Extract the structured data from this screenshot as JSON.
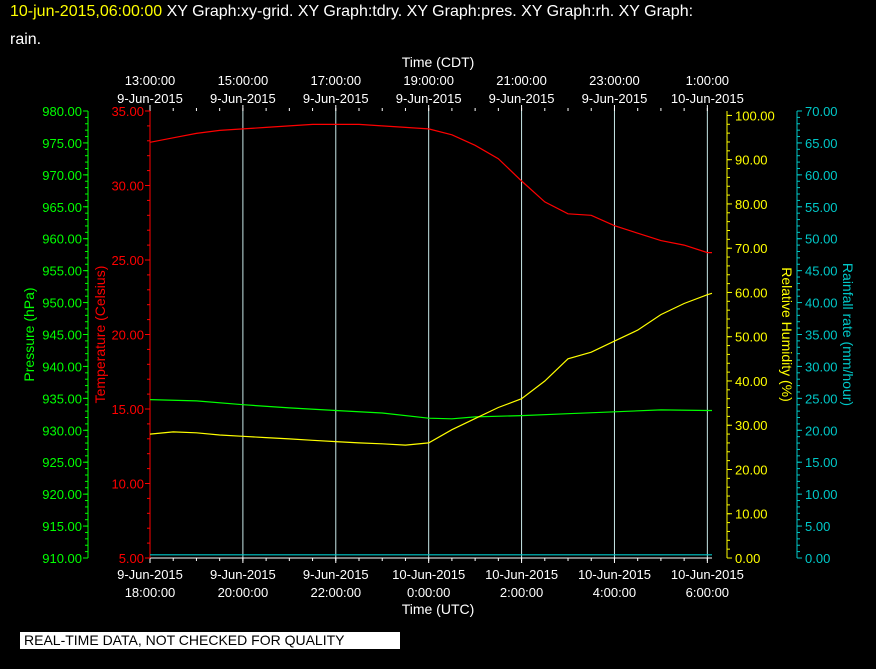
{
  "header": {
    "timestamp": "10-jun-2015,06:00:00",
    "title_rest": "  XY Graph:xy-grid.  XY Graph:tdry.  XY Graph:pres.  XY Graph:rh.  XY Graph:",
    "title_line2": "rain."
  },
  "footer": {
    "qc_notice": "REAL-TIME DATA, NOT CHECKED FOR QUALITY"
  },
  "colors": {
    "pressure": "#00ff00",
    "temperature": "#ff0000",
    "humidity": "#ffff00",
    "rainfall": "#00c8c8",
    "grid": "#c8e8e8",
    "axis_time": "#ffffff"
  },
  "chart_data": {
    "type": "line",
    "top_axis": {
      "label": "Time (CDT)",
      "ticks": [
        {
          "time": "13:00:00",
          "date": "9-Jun-2015"
        },
        {
          "time": "15:00:00",
          "date": "9-Jun-2015"
        },
        {
          "time": "17:00:00",
          "date": "9-Jun-2015"
        },
        {
          "time": "19:00:00",
          "date": "9-Jun-2015"
        },
        {
          "time": "21:00:00",
          "date": "9-Jun-2015"
        },
        {
          "time": "23:00:00",
          "date": "9-Jun-2015"
        },
        {
          "time": "1:00:00",
          "date": "10-Jun-2015"
        }
      ]
    },
    "bottom_axis": {
      "label": "Time (UTC)",
      "range_hours": [
        18,
        30.1
      ],
      "ticks": [
        {
          "date": "9-Jun-2015",
          "time": "18:00:00",
          "hour": 18
        },
        {
          "date": "9-Jun-2015",
          "time": "20:00:00",
          "hour": 20
        },
        {
          "date": "9-Jun-2015",
          "time": "22:00:00",
          "hour": 22
        },
        {
          "date": "10-Jun-2015",
          "time": "0:00:00",
          "hour": 24
        },
        {
          "date": "10-Jun-2015",
          "time": "2:00:00",
          "hour": 26
        },
        {
          "date": "10-Jun-2015",
          "time": "4:00:00",
          "hour": 28
        },
        {
          "date": "10-Jun-2015",
          "time": "6:00:00",
          "hour": 30
        }
      ]
    },
    "pressure_axis": {
      "label": "Pressure (hPa)",
      "range": [
        910,
        980
      ],
      "ticks": [
        "910.00",
        "915.00",
        "920.00",
        "925.00",
        "930.00",
        "935.00",
        "940.00",
        "945.00",
        "950.00",
        "955.00",
        "960.00",
        "965.00",
        "970.00",
        "975.00",
        "980.00"
      ]
    },
    "temperature_axis": {
      "label": "Temperature (Celsius)",
      "range": [
        5,
        35
      ],
      "ticks": [
        "5.00",
        "10.00",
        "15.00",
        "20.00",
        "25.00",
        "30.00",
        "35.00"
      ]
    },
    "humidity_axis": {
      "label": "Relative Humidity (%)",
      "range": [
        0,
        101
      ],
      "ticks": [
        "0.00",
        "10.00",
        "20.00",
        "30.00",
        "40.00",
        "50.00",
        "60.00",
        "70.00",
        "80.00",
        "90.00",
        "100.00"
      ]
    },
    "rain_axis": {
      "label": "Rainfall rate (mm/hour)",
      "range": [
        0,
        70
      ],
      "ticks": [
        "0.00",
        "5.00",
        "10.00",
        "15.00",
        "20.00",
        "25.00",
        "30.00",
        "35.00",
        "40.00",
        "45.00",
        "50.00",
        "55.00",
        "60.00",
        "65.00",
        "70.00"
      ]
    },
    "series": [
      {
        "name": "tdry",
        "axis": "temperature",
        "x": [
          18.0,
          18.5,
          19.0,
          19.5,
          20.0,
          20.5,
          21.0,
          21.5,
          22.0,
          22.5,
          23.0,
          23.5,
          24.0,
          24.5,
          25.0,
          25.5,
          26.0,
          26.5,
          27.0,
          27.5,
          28.0,
          28.5,
          29.0,
          29.5,
          30.0,
          30.1
        ],
        "values": [
          32.9,
          33.2,
          33.5,
          33.7,
          33.8,
          33.9,
          34.0,
          34.1,
          34.1,
          34.1,
          34.0,
          33.9,
          33.8,
          33.4,
          32.7,
          31.8,
          30.3,
          28.9,
          28.1,
          28.0,
          27.3,
          26.8,
          26.3,
          26.0,
          25.5,
          25.5
        ]
      },
      {
        "name": "pres",
        "axis": "pressure",
        "x": [
          18.0,
          19.0,
          20.0,
          21.0,
          22.0,
          23.0,
          24.0,
          24.5,
          25.0,
          26.0,
          27.0,
          28.0,
          29.0,
          30.0,
          30.1
        ],
        "values": [
          934.8,
          934.6,
          934.0,
          933.5,
          933.1,
          932.7,
          931.9,
          931.8,
          932.1,
          932.3,
          932.6,
          932.9,
          933.2,
          933.1,
          933.1
        ]
      },
      {
        "name": "rh",
        "axis": "humidity",
        "x": [
          18.0,
          18.5,
          19.0,
          19.5,
          20.0,
          20.5,
          21.0,
          21.5,
          22.0,
          22.5,
          23.0,
          23.5,
          24.0,
          24.5,
          25.0,
          25.5,
          26.0,
          26.5,
          27.0,
          27.5,
          28.0,
          28.5,
          29.0,
          29.5,
          30.0,
          30.1
        ],
        "values": [
          28.0,
          28.5,
          28.3,
          27.8,
          27.5,
          27.2,
          26.9,
          26.6,
          26.3,
          26.0,
          25.8,
          25.5,
          26.0,
          29.0,
          31.5,
          34.0,
          36.0,
          40.0,
          45.0,
          46.5,
          49.0,
          51.5,
          55.0,
          57.5,
          59.5,
          59.8
        ]
      },
      {
        "name": "rain",
        "axis": "rain",
        "x": [
          18.0,
          30.1
        ],
        "values": [
          0.5,
          0.5
        ]
      }
    ]
  }
}
